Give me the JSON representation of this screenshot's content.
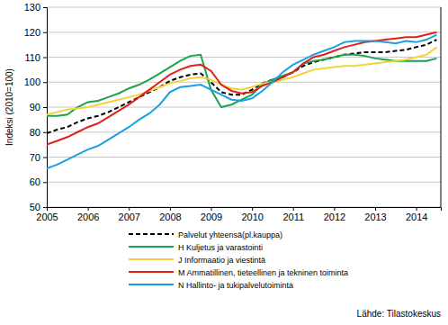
{
  "chart_data": {
    "type": "line",
    "y_label": "Indeksi (2010=100)",
    "source": "Lähde: Tilastokeskus",
    "x": [
      2005,
      2005.25,
      2005.5,
      2005.75,
      2006,
      2006.25,
      2006.5,
      2006.75,
      2007,
      2007.25,
      2007.5,
      2007.75,
      2008,
      2008.25,
      2008.5,
      2008.75,
      2009,
      2009.25,
      2009.5,
      2009.75,
      2010,
      2010.25,
      2010.5,
      2010.75,
      2011,
      2011.25,
      2011.5,
      2011.75,
      2012,
      2012.25,
      2012.5,
      2012.75,
      2013,
      2013.25,
      2013.5,
      2013.75,
      2014,
      2014.25,
      2014.5
    ],
    "series": [
      {
        "name": "Palvelut yhteensä(pl.kauppa)",
        "color": "#000000",
        "line_style": "dashed",
        "values": [
          79.5,
          81,
          82,
          84,
          85.5,
          86.5,
          88,
          90,
          92,
          94,
          96,
          98,
          100.5,
          102,
          103,
          103.5,
          100,
          96,
          95,
          95,
          97,
          99.5,
          101,
          102,
          104,
          106.5,
          108,
          109,
          110,
          111,
          111.5,
          112,
          112,
          112,
          112.5,
          113,
          114,
          115,
          117
        ]
      },
      {
        "name": "H Kuljetus ja varastointi",
        "color": "#1aa34a",
        "line_style": "solid",
        "values": [
          86.5,
          86.5,
          87,
          90,
          92,
          92.5,
          94,
          95.5,
          97.5,
          99,
          101,
          103.5,
          106,
          108.5,
          110.5,
          111,
          97,
          90,
          91,
          93,
          95,
          99,
          101,
          102.5,
          104,
          107.5,
          108.5,
          109,
          110,
          111,
          111,
          110.5,
          109.5,
          109,
          108.5,
          108.5,
          108.5,
          108.5,
          109.5
        ]
      },
      {
        "name": "J Informaatio ja viestintä",
        "color": "#f2d33c",
        "line_style": "solid",
        "values": [
          87,
          88,
          89,
          89.5,
          90,
          91,
          92,
          93,
          94,
          95,
          96.5,
          98,
          99.5,
          100.5,
          101.5,
          102,
          101,
          99,
          97.5,
          97,
          98,
          99.5,
          100,
          101,
          102,
          103.5,
          105,
          105.5,
          106,
          106.5,
          106.5,
          107,
          107.5,
          108,
          108.5,
          109,
          110,
          111,
          114
        ]
      },
      {
        "name": "M Ammatillinen, tieteellinen ja tekninen toiminta",
        "color": "#e0201b",
        "line_style": "solid",
        "values": [
          75,
          76.5,
          78,
          80,
          82,
          83.5,
          86,
          88.5,
          91,
          94,
          97,
          100,
          103,
          105,
          106.5,
          107,
          104.5,
          99,
          96.5,
          95.5,
          96,
          98.5,
          100,
          102,
          104,
          107.5,
          110,
          111,
          112.5,
          114,
          115,
          116,
          116.5,
          117,
          117.5,
          118,
          118,
          119,
          120
        ]
      },
      {
        "name": "N Hallinto- ja tukipalvelutoiminta",
        "color": "#1aa0e0",
        "line_style": "solid",
        "values": [
          65.5,
          67,
          69,
          71,
          73,
          74.5,
          77,
          79.5,
          82,
          85,
          87.5,
          91,
          96,
          98,
          98.5,
          99,
          97,
          95,
          93,
          92.5,
          93.5,
          96.5,
          100,
          104,
          107,
          109,
          111,
          112.5,
          114,
          116,
          116.5,
          116.5,
          116.5,
          116,
          115.5,
          116.5,
          116,
          117,
          119
        ]
      }
    ],
    "xlim": [
      2005,
      2014.6
    ],
    "xticks": [
      2005,
      2006,
      2007,
      2008,
      2009,
      2010,
      2011,
      2012,
      2013,
      2014
    ],
    "ylim": [
      50,
      130
    ],
    "yticks": [
      50,
      60,
      70,
      80,
      90,
      100,
      110,
      120,
      130
    ],
    "grid": true,
    "legend": "bottom"
  }
}
